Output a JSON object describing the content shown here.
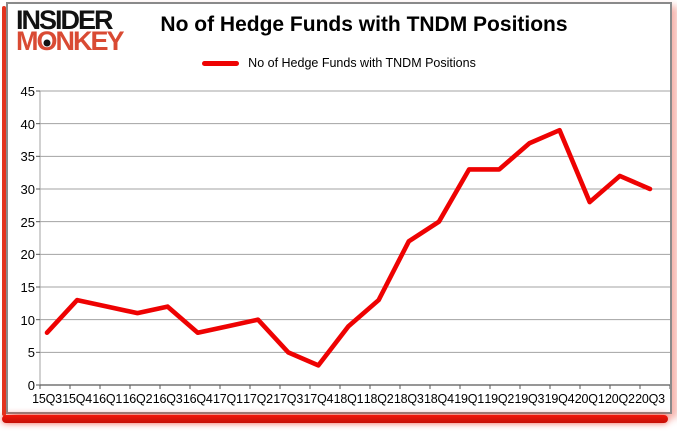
{
  "logo": {
    "line1": "INSIDER",
    "line2_m": "M",
    "line2_o": "O",
    "line2_rest": "NKEY"
  },
  "header": {
    "title": "No of Hedge Funds with TNDM Positions"
  },
  "legend": {
    "label": "No of Hedge Funds with TNDM Positions"
  },
  "chart_data": {
    "type": "line",
    "title": "No of Hedge Funds with TNDM Positions",
    "categories": [
      "15Q3",
      "15Q4",
      "16Q1",
      "16Q2",
      "16Q3",
      "16Q4",
      "17Q1",
      "17Q2",
      "17Q3",
      "17Q4",
      "18Q1",
      "18Q2",
      "18Q3",
      "18Q4",
      "19Q1",
      "19Q2",
      "19Q3",
      "19Q4",
      "20Q1",
      "20Q2",
      "20Q3"
    ],
    "series": [
      {
        "name": "No of Hedge Funds with TNDM Positions",
        "values": [
          8,
          13,
          12,
          11,
          12,
          8,
          9,
          10,
          5,
          3,
          9,
          13,
          22,
          25,
          33,
          33,
          37,
          39,
          28,
          32,
          30
        ],
        "color": "#ee0202"
      }
    ],
    "ylim": [
      0,
      45
    ],
    "ytick_step": 5,
    "yticks": [
      0,
      5,
      10,
      15,
      20,
      25,
      30,
      35,
      40,
      45
    ],
    "grid": true,
    "legend_position": "top-center"
  },
  "colors": {
    "line": "#ee0202",
    "logo_black": "#121212",
    "logo_red": "#d94a33",
    "grid": "#a3a3a3",
    "axis": "#595959",
    "frame_border": "#8a8a8a",
    "accent_red": "#e2341f"
  }
}
